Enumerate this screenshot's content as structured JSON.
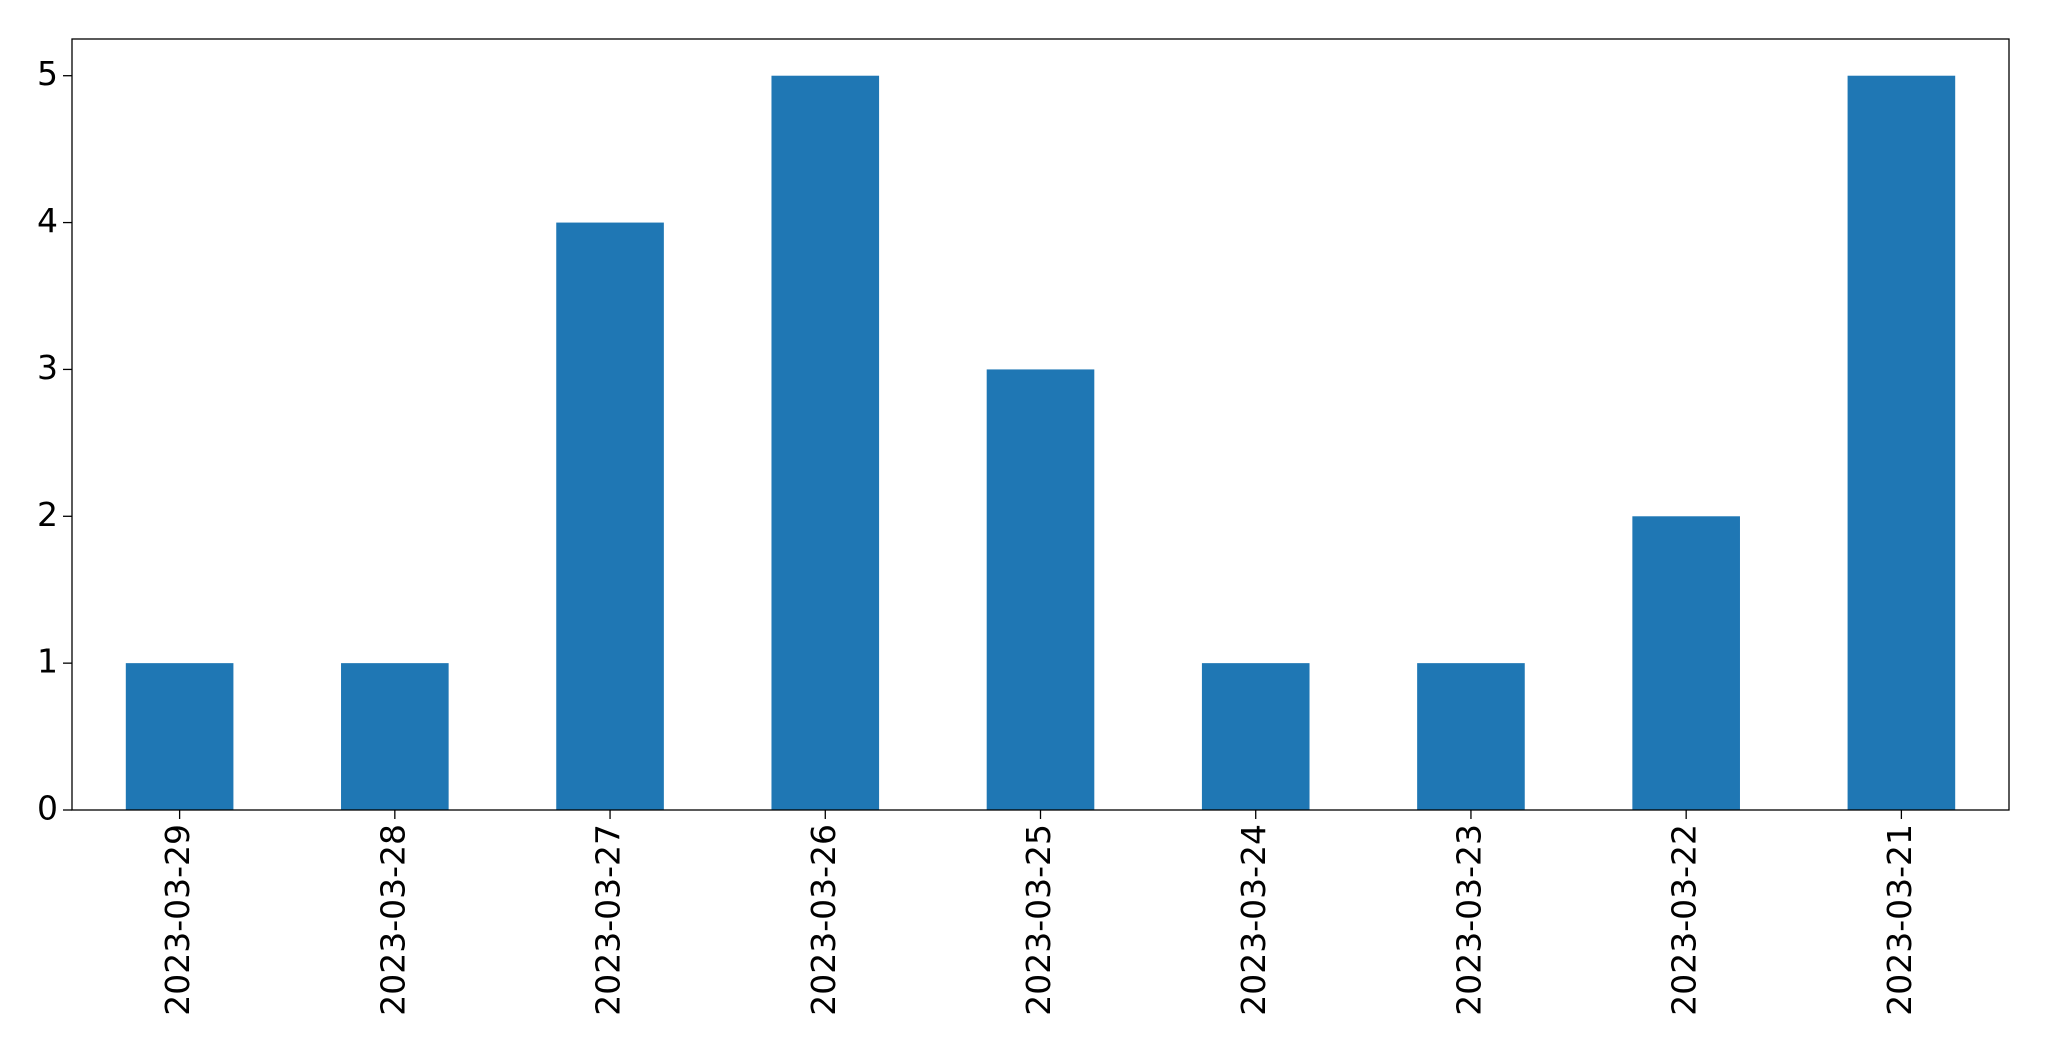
{
  "chart_data": {
    "type": "bar",
    "categories": [
      "2023-03-29",
      "2023-03-28",
      "2023-03-27",
      "2023-03-26",
      "2023-03-25",
      "2023-03-24",
      "2023-03-23",
      "2023-03-22",
      "2023-03-21"
    ],
    "values": [
      1,
      1,
      4,
      5,
      3,
      1,
      1,
      2,
      5
    ],
    "color": "#1f77b4",
    "ylim": [
      0,
      5.25
    ],
    "yticks": [
      0,
      1,
      2,
      3,
      4,
      5
    ],
    "grid": false
  }
}
